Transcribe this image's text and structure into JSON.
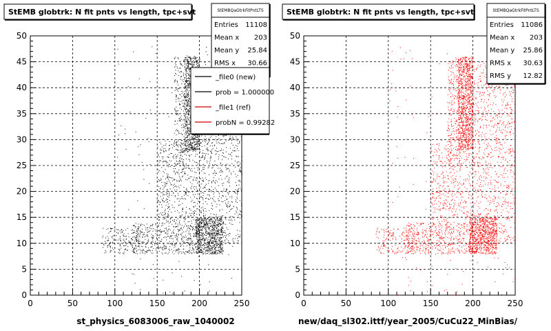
{
  "chart_data": [
    {
      "type": "scatter",
      "title": "StEMB globtrk: N fit pnts vs length, tpc+svt",
      "xlabel": "st_physics_6083006_raw_1040002",
      "ylabel": "",
      "xlim": [
        0,
        250
      ],
      "ylim": [
        0,
        50
      ],
      "xticks": [
        "0",
        "50",
        "100",
        "150",
        "200",
        "250"
      ],
      "yticks": [
        "0",
        "5",
        "10",
        "15",
        "20",
        "25",
        "30",
        "35",
        "40",
        "45",
        "50"
      ],
      "grid": true,
      "marker_color": "#000000",
      "stats": {
        "header": "StEMBQaGtrkFitPntLTS",
        "rows": [
          {
            "label": "Entries",
            "value": "11108"
          },
          {
            "label": "Mean x",
            "value": "203"
          },
          {
            "label": "Mean y",
            "value": "25.84"
          },
          {
            "label": "RMS x",
            "value": "30.66"
          }
        ]
      },
      "legend": {
        "placement": "top-right",
        "entries": [
          {
            "label": "_file0 (new)",
            "color": "#000000"
          },
          {
            "label": "prob = 1.000000",
            "color": "#000000"
          },
          {
            "label": "_file1 (ref)",
            "color": "#cc0000"
          },
          {
            "label": "probN = 0.99282",
            "color": "#cc0000"
          }
        ]
      },
      "density_regions": [
        {
          "x": [
            182,
            200
          ],
          "y": [
            28,
            46
          ],
          "weight": 0.22
        },
        {
          "x": [
            195,
            228
          ],
          "y": [
            8,
            15
          ],
          "weight": 0.18
        },
        {
          "x": [
            200,
            250
          ],
          "y": [
            10,
            45
          ],
          "weight": 0.22
        },
        {
          "x": [
            120,
            200
          ],
          "y": [
            8,
            14
          ],
          "weight": 0.12
        },
        {
          "x": [
            150,
            200
          ],
          "y": [
            14,
            30
          ],
          "weight": 0.12
        },
        {
          "x": [
            170,
            185
          ],
          "y": [
            25,
            46
          ],
          "weight": 0.06
        },
        {
          "x": [
            85,
            130
          ],
          "y": [
            8,
            13
          ],
          "weight": 0.04
        },
        {
          "x": [
            100,
            250
          ],
          "y": [
            0,
            48
          ],
          "weight": 0.04
        }
      ],
      "point_count": 4200
    },
    {
      "type": "scatter",
      "title": "StEMB globtrk: N fit pnts vs length, tpc+svt",
      "xlabel": "new/daq_sl302.ittf/year_2005/CuCu22_MinBias/",
      "ylabel": "",
      "xlim": [
        0,
        250
      ],
      "ylim": [
        0,
        50
      ],
      "xticks": [
        "0",
        "50",
        "100",
        "150",
        "200",
        "250"
      ],
      "yticks": [
        "0",
        "5",
        "10",
        "15",
        "20",
        "25",
        "30",
        "35",
        "40",
        "45",
        "50"
      ],
      "grid": true,
      "marker_color": "#ff0000",
      "stats": {
        "header": "StEMBQaGtrkFitPntLTS",
        "rows": [
          {
            "label": "Entries",
            "value": "11086"
          },
          {
            "label": "Mean x",
            "value": "203"
          },
          {
            "label": "Mean y",
            "value": "25.86"
          },
          {
            "label": "RMS x",
            "value": "30.63"
          },
          {
            "label": "RMS y",
            "value": "12.82"
          }
        ]
      },
      "density_regions": [
        {
          "x": [
            182,
            200
          ],
          "y": [
            28,
            46
          ],
          "weight": 0.24
        },
        {
          "x": [
            195,
            228
          ],
          "y": [
            8,
            15
          ],
          "weight": 0.18
        },
        {
          "x": [
            200,
            250
          ],
          "y": [
            10,
            45
          ],
          "weight": 0.22
        },
        {
          "x": [
            120,
            200
          ],
          "y": [
            8,
            14
          ],
          "weight": 0.12
        },
        {
          "x": [
            150,
            200
          ],
          "y": [
            14,
            30
          ],
          "weight": 0.1
        },
        {
          "x": [
            170,
            185
          ],
          "y": [
            25,
            46
          ],
          "weight": 0.06
        },
        {
          "x": [
            85,
            130
          ],
          "y": [
            8,
            13
          ],
          "weight": 0.04
        },
        {
          "x": [
            100,
            250
          ],
          "y": [
            0,
            48
          ],
          "weight": 0.04
        }
      ],
      "point_count": 4200
    }
  ]
}
